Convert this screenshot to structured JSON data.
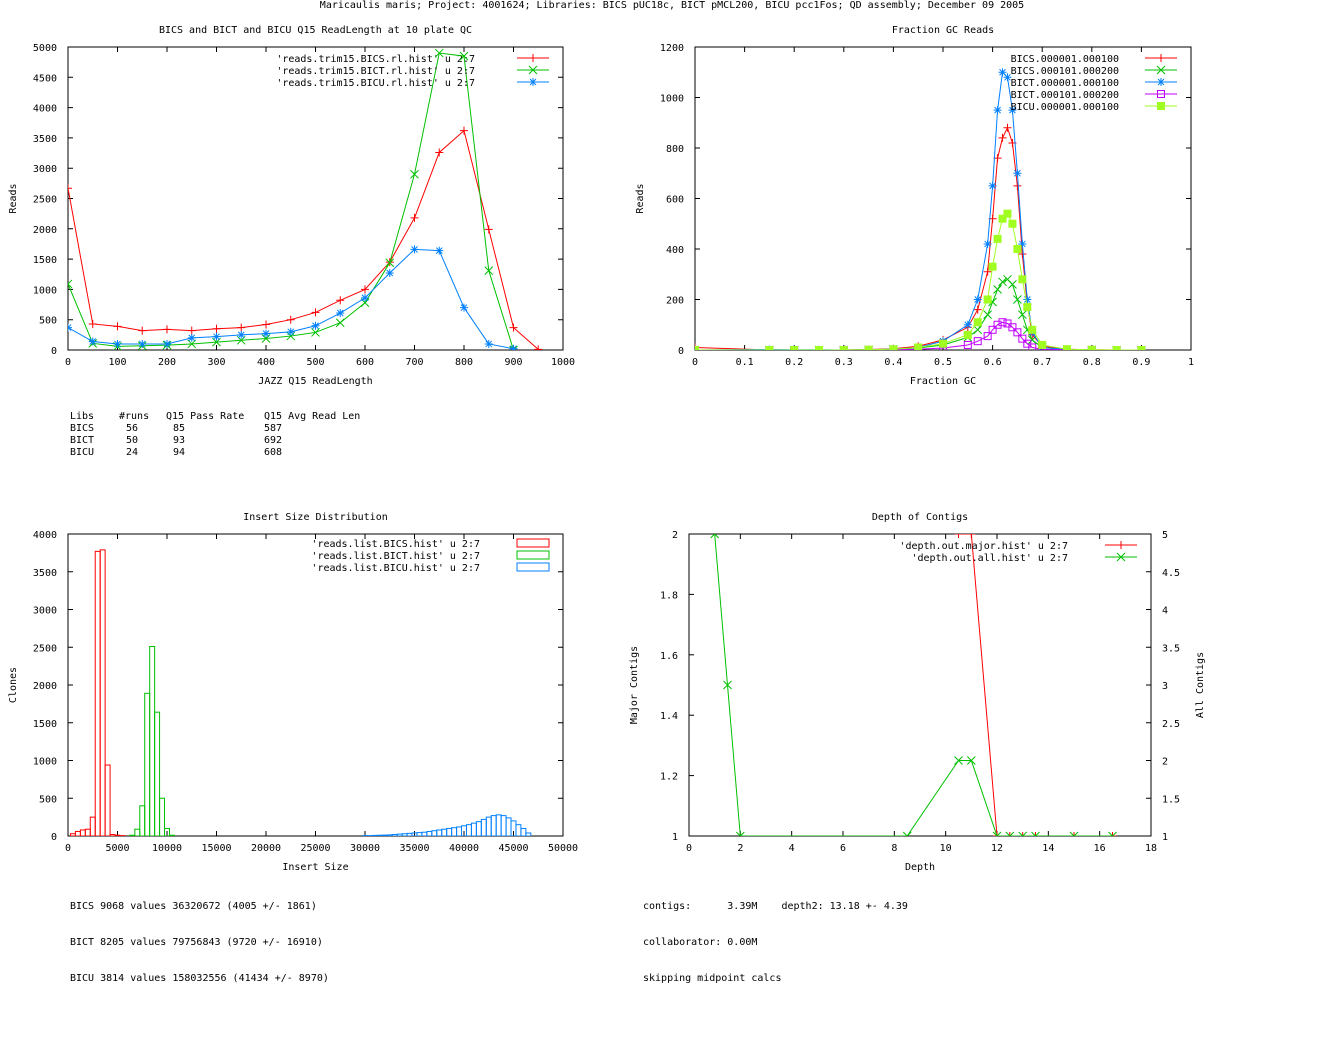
{
  "page_title": "Maricaulis maris; Project: 4001624; Libraries: BICS pUC18c, BICT pMCL200, BICU pcc1Fos; QD assembly; December 09 2005",
  "colors": {
    "red": "#ff0000",
    "green": "#00c000",
    "blue": "#0080ff",
    "magenta": "#c000ff",
    "lime": "#a0ff20"
  },
  "readlen_table": {
    "headers": [
      "Libs",
      "#runs",
      "Q15 Pass Rate",
      "Q15 Avg Read Len"
    ],
    "rows": [
      [
        "BICS",
        "56",
        "85",
        "587"
      ],
      [
        "BICT",
        "50",
        "93",
        "692"
      ],
      [
        "BICU",
        "24",
        "94",
        "608"
      ]
    ]
  },
  "insert_stats": [
    "BICS 9068 values 36320672 (4005 +/- 1861)",
    "BICT 8205 values 79756843 (9720 +/- 16910)",
    "BICU 3814 values 158032556 (41434 +/- 8970)"
  ],
  "depth_stats": [
    "contigs:      3.39M    depth2: 13.18 +- 4.39",
    "collaborator: 0.00M",
    "skipping midpoint calcs"
  ],
  "chart_data": [
    {
      "type": "line",
      "title": "BICS and BICT and BICU Q15 ReadLength at 10 plate QC",
      "xlabel": "JAZZ Q15 ReadLength",
      "ylabel": "Reads",
      "xlim": [
        0,
        1000
      ],
      "ylim": [
        0,
        5000
      ],
      "xticks": [
        "0",
        "100",
        "200",
        "300",
        "400",
        "500",
        "600",
        "700",
        "800",
        "900",
        "1000"
      ],
      "yticks": [
        "0",
        "500",
        "1000",
        "1500",
        "2000",
        "2500",
        "3000",
        "3500",
        "4000",
        "4500",
        "5000"
      ],
      "x": [
        0,
        50,
        100,
        150,
        200,
        250,
        300,
        350,
        400,
        450,
        500,
        550,
        600,
        650,
        700,
        750,
        800,
        850,
        900,
        950
      ],
      "series": [
        {
          "name": "'reads.trim15.BICS.rl.hist' u 2:7",
          "color": "#ff0000",
          "marker": "plus",
          "values": [
            2670,
            430,
            390,
            320,
            340,
            320,
            350,
            370,
            420,
            500,
            620,
            820,
            1000,
            1450,
            2180,
            3260,
            3620,
            1990,
            370,
            10
          ]
        },
        {
          "name": "'reads.trim15.BICT.rl.hist' u 2:7",
          "color": "#00c000",
          "marker": "x",
          "values": [
            1090,
            110,
            60,
            70,
            80,
            100,
            130,
            160,
            190,
            230,
            290,
            450,
            780,
            1440,
            2900,
            4900,
            4850,
            1310,
            0,
            null
          ]
        },
        {
          "name": "'reads.trim15.BICU.rl.hist' u 2:7",
          "color": "#0080ff",
          "marker": "star",
          "values": [
            370,
            140,
            100,
            100,
            100,
            200,
            220,
            250,
            270,
            300,
            400,
            610,
            860,
            1270,
            1660,
            1640,
            700,
            100,
            20,
            null
          ]
        }
      ]
    },
    {
      "type": "line",
      "title": "Fraction GC Reads",
      "xlabel": "Fraction GC",
      "ylabel": "Reads",
      "xlim": [
        0,
        1
      ],
      "ylim": [
        0,
        1200
      ],
      "xticks": [
        "0",
        "0.1",
        "0.2",
        "0.3",
        "0.4",
        "0.5",
        "0.6",
        "0.7",
        "0.8",
        "0.9",
        "1"
      ],
      "yticks": [
        "0",
        "200",
        "400",
        "600",
        "800",
        "1000",
        "1200"
      ],
      "x": [
        0.0,
        0.15,
        0.2,
        0.25,
        0.3,
        0.35,
        0.4,
        0.45,
        0.5,
        0.55,
        0.57,
        0.59,
        0.6,
        0.61,
        0.62,
        0.63,
        0.64,
        0.65,
        0.66,
        0.67,
        0.68,
        0.7,
        0.75,
        0.8,
        0.85,
        0.9
      ],
      "series": [
        {
          "name": "BICS.000001.000100",
          "color": "#ff0000",
          "marker": "plus",
          "values": [
            10,
            0,
            0,
            0,
            0,
            2,
            5,
            15,
            40,
            90,
            160,
            310,
            520,
            760,
            840,
            880,
            820,
            650,
            380,
            180,
            60,
            15,
            3,
            1,
            0,
            0
          ]
        },
        {
          "name": "BICS.000101.000200",
          "color": "#00c000",
          "marker": "x",
          "values": [
            0,
            0,
            0,
            0,
            0,
            1,
            3,
            8,
            20,
            50,
            80,
            140,
            190,
            240,
            270,
            280,
            260,
            200,
            140,
            80,
            40,
            10,
            2,
            0,
            0,
            0
          ]
        },
        {
          "name": "BICT.000001.000100",
          "color": "#0080ff",
          "marker": "star",
          "values": [
            0,
            2,
            1,
            1,
            0,
            1,
            3,
            10,
            35,
            100,
            200,
            420,
            650,
            950,
            1100,
            1080,
            950,
            700,
            420,
            200,
            70,
            10,
            2,
            0,
            0,
            0
          ]
        },
        {
          "name": "BICT.000101.000200",
          "color": "#c000ff",
          "marker": "square",
          "values": [
            0,
            0,
            0,
            0,
            0,
            0,
            1,
            3,
            8,
            20,
            35,
            55,
            80,
            100,
            110,
            105,
            90,
            70,
            45,
            25,
            10,
            3,
            1,
            0,
            0,
            0
          ]
        },
        {
          "name": "BICU.000001.000100",
          "color": "#a0ff20",
          "marker": "filled-square",
          "values": [
            0,
            0,
            0,
            0,
            0,
            1,
            3,
            10,
            25,
            60,
            110,
            200,
            330,
            440,
            520,
            540,
            500,
            400,
            280,
            170,
            80,
            20,
            3,
            1,
            0,
            0
          ]
        }
      ]
    },
    {
      "type": "bar",
      "title": "Insert Size Distribution",
      "xlabel": "Insert Size",
      "ylabel": "Clones",
      "xlim": [
        0,
        50000
      ],
      "ylim": [
        0,
        4000
      ],
      "xticks": [
        "0",
        "5000",
        "10000",
        "15000",
        "20000",
        "25000",
        "30000",
        "35000",
        "40000",
        "45000",
        "50000"
      ],
      "yticks": [
        "0",
        "500",
        "1000",
        "1500",
        "2000",
        "2500",
        "3000",
        "3500",
        "4000"
      ],
      "bin_width": 500,
      "series": [
        {
          "name": "'reads.list.BICS.hist' u 2:7",
          "color": "#ff0000",
          "bins": [
            500,
            1000,
            1500,
            2000,
            2500,
            3000,
            3500,
            4000,
            4500,
            5000,
            5500
          ],
          "values": [
            30,
            60,
            80,
            90,
            250,
            3770,
            3790,
            940,
            20,
            10,
            5
          ]
        },
        {
          "name": "'reads.list.BICT.hist' u 2:7",
          "color": "#00c000",
          "bins": [
            6500,
            7000,
            7500,
            8000,
            8500,
            9000,
            9500,
            10000,
            10500
          ],
          "values": [
            10,
            90,
            400,
            1890,
            2510,
            1640,
            500,
            100,
            10
          ]
        },
        {
          "name": "'reads.list.BICU.hist' u 2:7",
          "color": "#0080ff",
          "bins": [
            30000,
            30500,
            31000,
            31500,
            32000,
            32500,
            33000,
            33500,
            34000,
            34500,
            35000,
            35500,
            36000,
            36500,
            37000,
            37500,
            38000,
            38500,
            39000,
            39500,
            40000,
            40500,
            41000,
            41500,
            42000,
            42500,
            43000,
            43500,
            44000,
            44500,
            45000,
            45500,
            46000,
            46500
          ],
          "values": [
            5,
            5,
            8,
            10,
            12,
            15,
            20,
            25,
            30,
            35,
            40,
            45,
            50,
            60,
            70,
            80,
            90,
            100,
            110,
            120,
            135,
            150,
            170,
            190,
            220,
            250,
            270,
            280,
            270,
            240,
            200,
            150,
            100,
            40
          ]
        }
      ]
    },
    {
      "type": "line",
      "title": "Depth of Contigs",
      "xlabel": "Depth",
      "ylabel": "Major Contigs",
      "y2label": "All Contigs",
      "xlim": [
        0,
        18
      ],
      "ylim": [
        1,
        2
      ],
      "y2lim": [
        1,
        5
      ],
      "xticks": [
        "0",
        "2",
        "4",
        "6",
        "8",
        "10",
        "12",
        "14",
        "16",
        "18"
      ],
      "yticks": [
        "1",
        "1.2",
        "1.4",
        "1.6",
        "1.8",
        "2"
      ],
      "y2ticks": [
        "1",
        "1.5",
        "2",
        "2.5",
        "3",
        "3.5",
        "4",
        "4.5",
        "5"
      ],
      "series": [
        {
          "name": "'depth.out.major.hist' u 2:7",
          "color": "#ff0000",
          "marker": "plus",
          "axis": "y1",
          "x": [
            10.5,
            11,
            12,
            12.5,
            13,
            13.5,
            15,
            16.5
          ],
          "values": [
            2,
            2,
            1,
            1,
            1,
            1,
            1,
            1
          ]
        },
        {
          "name": "'depth.out.all.hist' u 2:7",
          "color": "#00c000",
          "marker": "x",
          "axis": "y2",
          "x": [
            1,
            1.5,
            2,
            8.5,
            10.5,
            11,
            12,
            12.5,
            13,
            13.5,
            15,
            16.5
          ],
          "values": [
            5,
            3,
            1,
            1,
            2,
            2,
            1,
            1,
            1,
            1,
            1,
            1
          ]
        }
      ]
    }
  ]
}
